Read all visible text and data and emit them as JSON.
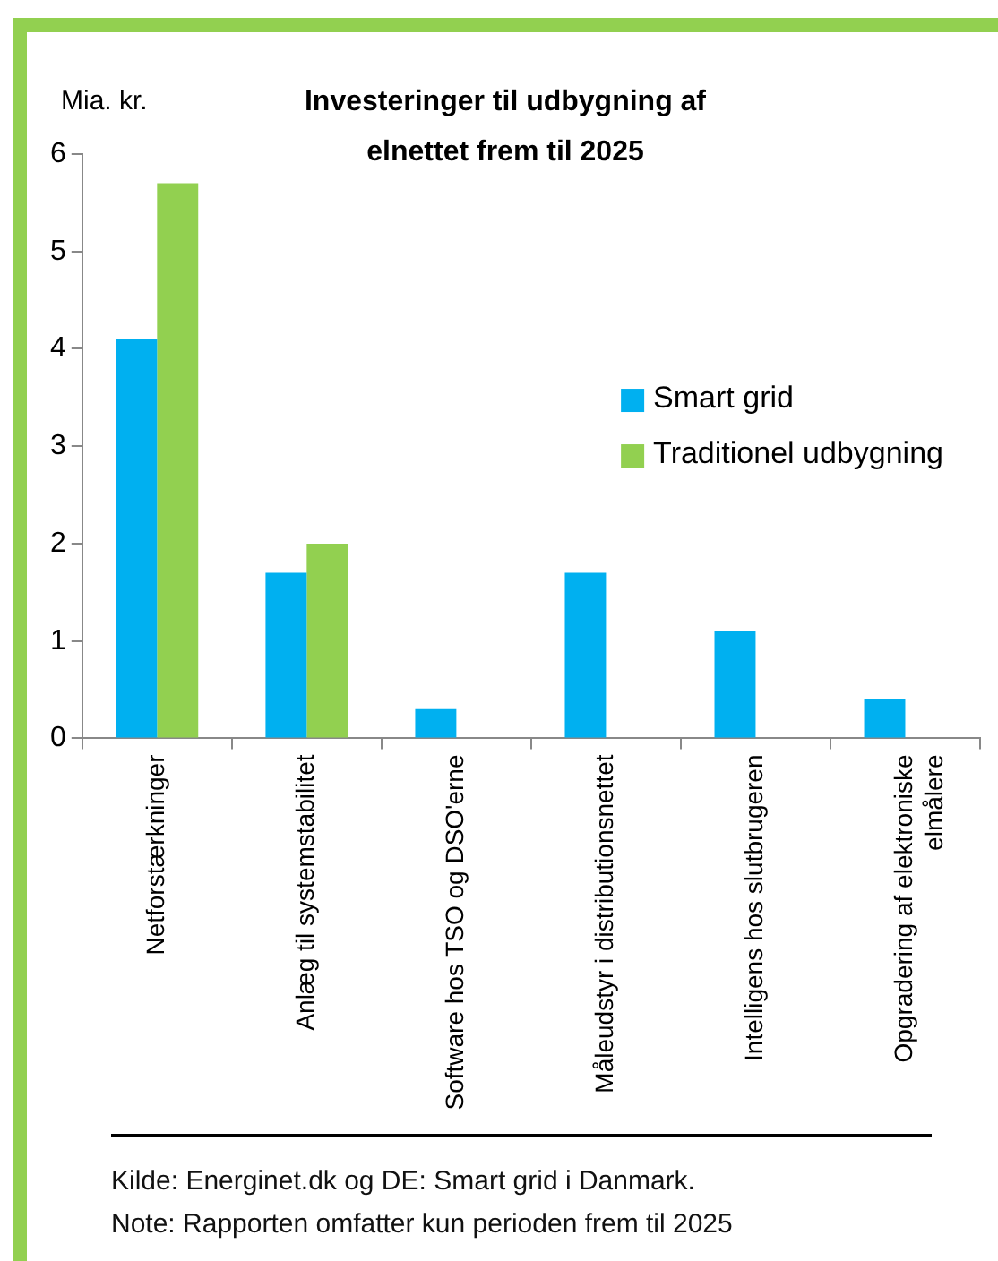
{
  "chart_data": {
    "type": "bar",
    "title": "Investeringer til udbygning af elnettet frem til 2025",
    "ylabel": "Mia. kr.",
    "categories": [
      "Netforstærkninger",
      "Anlæg til systemstabilitet",
      "Software hos TSO og DSO'erne",
      "Måleudstyr i distributionsnettet",
      "Intelligens hos slutbrugeren",
      "Opgradering af elektroniske elmålere"
    ],
    "series": [
      {
        "name": "Smart grid",
        "color": "#00b0f0",
        "values": [
          4.1,
          1.7,
          0.3,
          1.7,
          1.1,
          0.4
        ]
      },
      {
        "name": "Traditionel udbygning",
        "color": "#92d050",
        "values": [
          5.7,
          2.0,
          null,
          null,
          null,
          null
        ]
      }
    ],
    "ylim": [
      0,
      6
    ],
    "yticks": [
      0,
      1,
      2,
      3,
      4,
      5,
      6
    ],
    "legend": "right",
    "annotations": [
      "Kilde: Energinet.dk og DE: Smart grid i Danmark.",
      "Note: Rapporten omfatter kun perioden frem til 2025"
    ]
  }
}
